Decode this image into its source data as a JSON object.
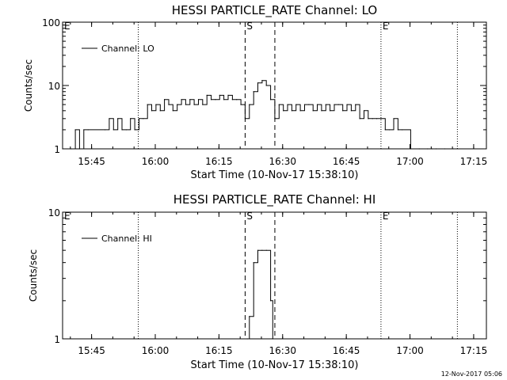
{
  "footer_timestamp": "12-Nov-2017 05:06",
  "chart_data": [
    {
      "type": "line",
      "title": "HESSI PARTICLE_RATE Channel: LO",
      "xlabel": "Start Time (10-Nov-17 15:38:10)",
      "ylabel": "Counts/sec",
      "y_scale": "log",
      "xlim": [
        "15:38:10",
        "17:18:00"
      ],
      "ylim": [
        1,
        100
      ],
      "x_ticks": [
        "15:45",
        "16:00",
        "16:15",
        "16:30",
        "16:45",
        "17:00",
        "17:15"
      ],
      "y_ticks": [
        "1",
        "10",
        "100"
      ],
      "legend": {
        "position": "top-left",
        "entries": [
          "Channel: LO"
        ]
      },
      "markers": [
        {
          "label": "E",
          "time": "15:38:10",
          "style": "none"
        },
        {
          "label": "",
          "time": "15:56:00",
          "style": "dotted"
        },
        {
          "label": "S",
          "time": "16:21:10",
          "style": "dashed"
        },
        {
          "label": "",
          "time": "16:28:10",
          "style": "dashed"
        },
        {
          "label": "E",
          "time": "16:53:10",
          "style": "dotted"
        },
        {
          "label": "",
          "time": "17:11:10",
          "style": "dotted"
        }
      ],
      "series": [
        {
          "name": "Channel: LO",
          "x": [
            "15:38:10",
            "15:40:10",
            "15:41:10",
            "15:42:10",
            "15:43:10",
            "15:44:10",
            "15:48:10",
            "15:49:10",
            "15:50:10",
            "15:51:10",
            "15:52:10",
            "15:53:10",
            "15:54:10",
            "15:55:10",
            "15:56:10",
            "15:57:10",
            "15:58:10",
            "15:59:10",
            "16:00:10",
            "16:01:10",
            "16:02:10",
            "16:03:10",
            "16:04:10",
            "16:05:10",
            "16:06:10",
            "16:07:10",
            "16:08:10",
            "16:09:10",
            "16:10:10",
            "16:11:10",
            "16:12:10",
            "16:13:10",
            "16:14:10",
            "16:15:10",
            "16:16:10",
            "16:17:10",
            "16:18:10",
            "16:19:10",
            "16:20:10",
            "16:21:10",
            "16:22:10",
            "16:23:10",
            "16:24:10",
            "16:25:10",
            "16:26:10",
            "16:27:10",
            "16:28:10",
            "16:29:10",
            "16:30:10",
            "16:31:10",
            "16:32:10",
            "16:33:10",
            "16:34:10",
            "16:35:10",
            "16:36:10",
            "16:37:10",
            "16:38:10",
            "16:39:10",
            "16:40:10",
            "16:41:10",
            "16:42:10",
            "16:43:10",
            "16:44:10",
            "16:45:10",
            "16:46:10",
            "16:47:10",
            "16:48:10",
            "16:49:10",
            "16:50:10",
            "16:51:10",
            "16:52:10",
            "16:53:10",
            "16:54:10",
            "16:55:10",
            "16:56:10",
            "16:57:10",
            "16:58:10",
            "17:00:10",
            "17:02:10",
            "17:04:10",
            "17:05:10",
            "17:06:10",
            "17:08:10",
            "17:10:10"
          ],
          "y": [
            1,
            1,
            2,
            1,
            2,
            2,
            2,
            3,
            2,
            3,
            2,
            2,
            3,
            2,
            3,
            3,
            5,
            4,
            5,
            4,
            6,
            5,
            4,
            5,
            6,
            5,
            6,
            5,
            6,
            5,
            7,
            6,
            6,
            7,
            6,
            7,
            6,
            6,
            5,
            3,
            5,
            8,
            11,
            12,
            10,
            6,
            3,
            5,
            4,
            5,
            4,
            5,
            4,
            5,
            5,
            4,
            5,
            4,
            5,
            4,
            5,
            5,
            4,
            5,
            4,
            5,
            3,
            4,
            3,
            3,
            3,
            3,
            2,
            2,
            3,
            2,
            2,
            1,
            1,
            1,
            1,
            1,
            1,
            1
          ]
        }
      ]
    },
    {
      "type": "line",
      "title": "HESSI PARTICLE_RATE Channel: HI",
      "xlabel": "Start Time (10-Nov-17 15:38:10)",
      "ylabel": "Counts/sec",
      "y_scale": "log",
      "xlim": [
        "15:38:10",
        "17:18:00"
      ],
      "ylim": [
        1,
        10
      ],
      "x_ticks": [
        "15:45",
        "16:00",
        "16:15",
        "16:30",
        "16:45",
        "17:00",
        "17:15"
      ],
      "y_ticks": [
        "1",
        "10"
      ],
      "legend": {
        "position": "top-left",
        "entries": [
          "Channel: HI"
        ]
      },
      "markers": [
        {
          "label": "E",
          "time": "15:38:10",
          "style": "none"
        },
        {
          "label": "",
          "time": "15:56:00",
          "style": "dotted"
        },
        {
          "label": "S",
          "time": "16:21:10",
          "style": "dashed"
        },
        {
          "label": "",
          "time": "16:28:10",
          "style": "dashed"
        },
        {
          "label": "E",
          "time": "16:53:10",
          "style": "dotted"
        },
        {
          "label": "",
          "time": "17:11:10",
          "style": "dotted"
        }
      ],
      "series": [
        {
          "name": "Channel: HI",
          "x": [
            "16:21:40",
            "16:22:10",
            "16:23:10",
            "16:24:10",
            "16:25:10",
            "16:26:10",
            "16:27:10",
            "16:27:40"
          ],
          "y": [
            1,
            1.5,
            4,
            5,
            5,
            5,
            2,
            1
          ]
        }
      ]
    }
  ]
}
